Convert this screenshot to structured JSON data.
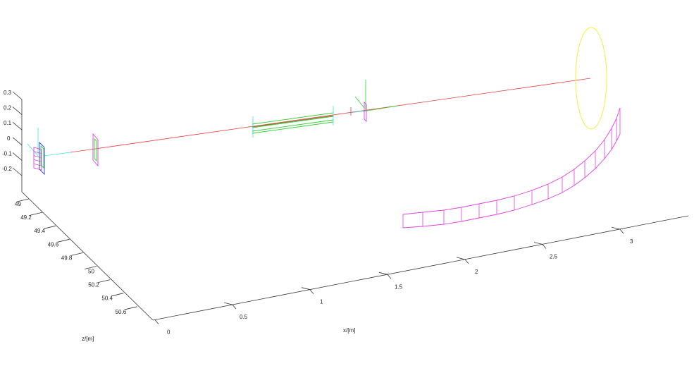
{
  "chart_data": {
    "type": "3d-line",
    "xlabel": "x/[m]",
    "zlabel": "z/[m]",
    "ylabel": "",
    "x_ticks": [
      "0",
      "0.5",
      "1",
      "1.5",
      "2",
      "2.5",
      "3"
    ],
    "z_ticks": [
      "49",
      "49.2",
      "49.4",
      "49.6",
      "49.8",
      "50",
      "50.2",
      "50.4",
      "50.6"
    ],
    "y_ticks": [
      "0.3",
      "0.2",
      "0.1",
      "0",
      "-0.1",
      "-0.2"
    ],
    "grid": false,
    "colors": {
      "beam": "#e84040",
      "detector": "#e040e0",
      "ring": "#f0f040",
      "element": "#30d030",
      "aperture": "#40e0f0",
      "frame": "#3040d0",
      "axis": "#333333"
    }
  }
}
